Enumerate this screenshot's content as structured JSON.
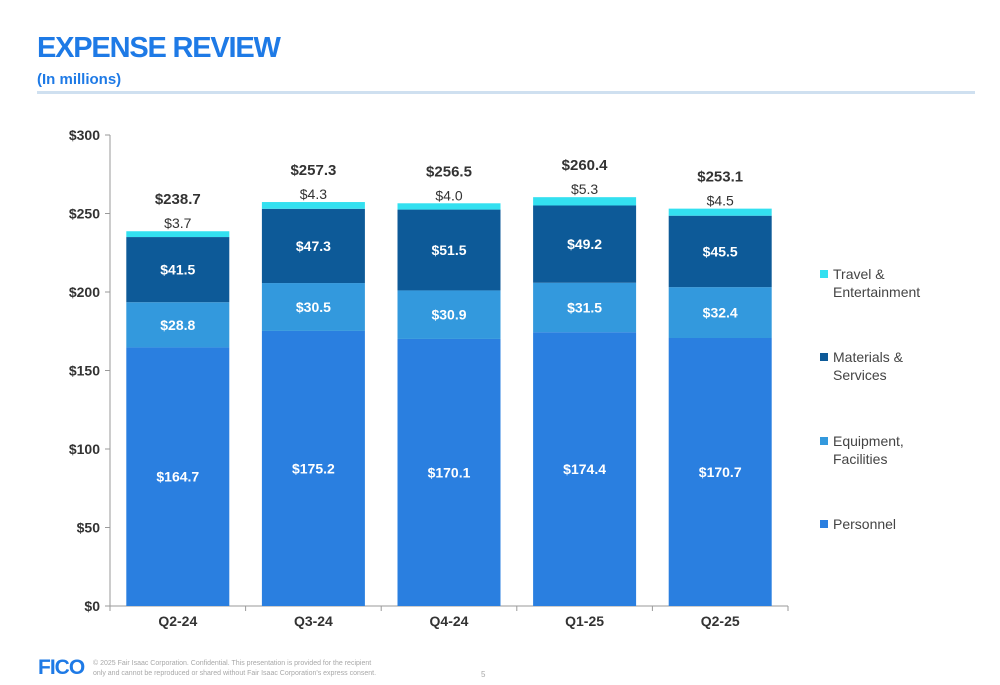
{
  "header": {
    "title": "EXPENSE REVIEW",
    "subtitle": "(In millions)"
  },
  "footer": {
    "logo": "FICO",
    "copyright": "© 2025 Fair Isaac Corporation. Confidential. This presentation is provided for the recipient only and cannot be reproduced or shared without Fair Isaac Corporation's express consent.",
    "page_number": "5"
  },
  "chart_data": {
    "type": "bar",
    "stacked": true,
    "categories": [
      "Q2-24",
      "Q3-24",
      "Q4-24",
      "Q1-25",
      "Q2-25"
    ],
    "series": [
      {
        "name": "Personnel",
        "color": "#2a7fe0",
        "values": [
          164.7,
          175.2,
          170.1,
          174.4,
          170.7
        ],
        "labels": [
          "$164.7",
          "$175.2",
          "$170.1",
          "$174.4",
          "$170.7"
        ]
      },
      {
        "name": "Equipment, Facilities",
        "color": "#3399dd",
        "values": [
          28.8,
          30.5,
          30.9,
          31.5,
          32.4
        ],
        "labels": [
          "$28.8",
          "$30.5",
          "$30.9",
          "$31.5",
          "$32.4"
        ]
      },
      {
        "name": "Materials & Services",
        "color": "#0d5a98",
        "values": [
          41.5,
          47.3,
          51.5,
          49.2,
          45.5
        ],
        "labels": [
          "$41.5",
          "$47.3",
          "$51.5",
          "$49.2",
          "$45.5"
        ]
      },
      {
        "name": "Travel & Entertainment",
        "color": "#33e0f0",
        "values": [
          3.7,
          4.3,
          4.0,
          5.3,
          4.5
        ],
        "labels": [
          "$3.7",
          "$4.3",
          "$4.0",
          "$5.3",
          "$4.5"
        ]
      }
    ],
    "totals": [
      "$238.7",
      "$257.3",
      "$256.5",
      "$260.4",
      "$253.1"
    ],
    "ylim": [
      0,
      300
    ],
    "yticks": [
      0,
      50,
      100,
      150,
      200,
      250,
      300
    ],
    "ytick_labels": [
      "$0",
      "$50",
      "$100",
      "$150",
      "$200",
      "$250",
      "$300"
    ],
    "legend_position": "right",
    "grid": false
  }
}
